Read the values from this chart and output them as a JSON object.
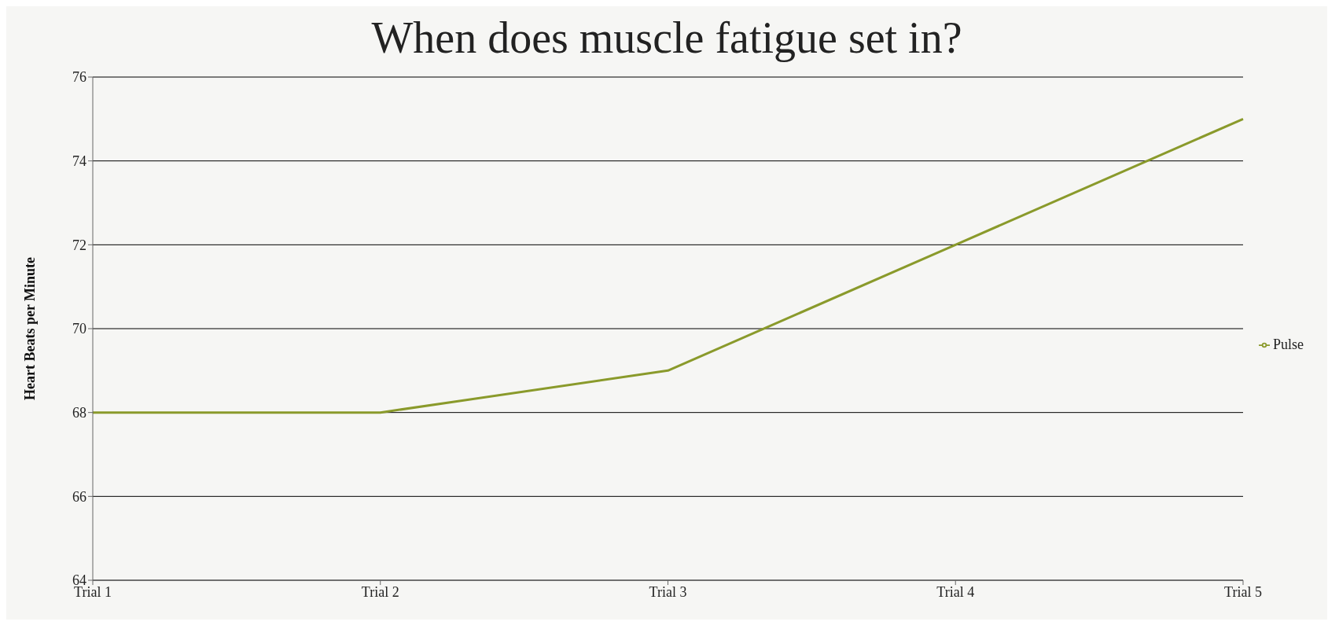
{
  "chart_data": {
    "type": "line",
    "title": "When does muscle fatigue set in?",
    "ylabel": "Heart Beats per Minute",
    "categories": [
      "Trial 1",
      "Trial 2",
      "Trial 3",
      "Trial 4",
      "Trial 5"
    ],
    "series": [
      {
        "name": "Pulse",
        "color": "#8a9a2b",
        "values": [
          68,
          68,
          69,
          72,
          75
        ]
      }
    ],
    "ylim": [
      64,
      76
    ],
    "yticks": [
      64,
      66,
      68,
      70,
      72,
      74,
      76
    ],
    "grid": "y",
    "legend": "right",
    "marker": "none",
    "line_style": "solid"
  }
}
